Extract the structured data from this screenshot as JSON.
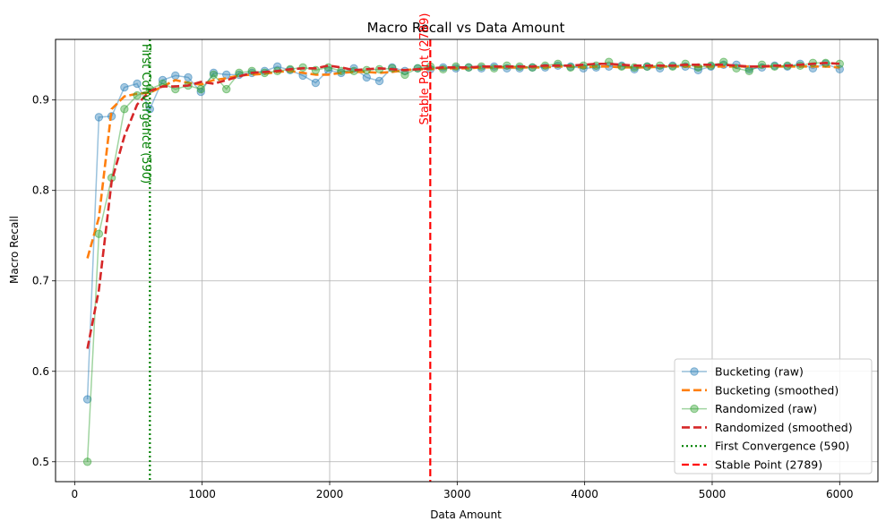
{
  "chart_data": {
    "type": "line",
    "title": "Macro Recall vs Data Amount",
    "xlabel": "Data Amount",
    "ylabel": "Macro Recall",
    "xlim": [
      -150,
      6300
    ],
    "ylim": [
      0.478,
      0.967
    ],
    "xticks": [
      0,
      1000,
      2000,
      3000,
      4000,
      5000,
      6000
    ],
    "yticks": [
      0.5,
      0.6,
      0.7,
      0.8,
      0.9
    ],
    "xtick_labels": [
      "0",
      "1000",
      "2000",
      "3000",
      "4000",
      "5000",
      "6000"
    ],
    "ytick_labels": [
      "0.5",
      "0.6",
      "0.7",
      "0.8",
      "0.9"
    ],
    "grid": true,
    "legend_position": "lower-right",
    "x": [
      100,
      190,
      290,
      390,
      490,
      590,
      690,
      790,
      890,
      990,
      1090,
      1190,
      1290,
      1390,
      1490,
      1590,
      1690,
      1790,
      1890,
      1990,
      2090,
      2190,
      2290,
      2390,
      2490,
      2590,
      2690,
      2790,
      2890,
      2990,
      3090,
      3190,
      3290,
      3390,
      3490,
      3590,
      3690,
      3790,
      3890,
      3990,
      4090,
      4190,
      4290,
      4390,
      4490,
      4590,
      4690,
      4790,
      4890,
      4990,
      5090,
      5190,
      5290,
      5390,
      5490,
      5590,
      5690,
      5790,
      5890,
      6000
    ],
    "series": [
      {
        "name": "Bucketing (raw)",
        "color": "#1f77b4",
        "style": "raw",
        "values": [
          0.569,
          0.881,
          0.882,
          0.914,
          0.918,
          0.89,
          0.922,
          0.927,
          0.925,
          0.909,
          0.93,
          0.928,
          0.928,
          0.93,
          0.932,
          0.937,
          0.933,
          0.927,
          0.919,
          0.933,
          0.93,
          0.935,
          0.925,
          0.921,
          0.936,
          0.932,
          0.935,
          0.934,
          0.936,
          0.935,
          0.936,
          0.935,
          0.937,
          0.935,
          0.935,
          0.936,
          0.936,
          0.938,
          0.937,
          0.935,
          0.936,
          0.937,
          0.938,
          0.934,
          0.937,
          0.935,
          0.938,
          0.937,
          0.933,
          0.937,
          0.939,
          0.939,
          0.934,
          0.936,
          0.938,
          0.937,
          0.94,
          0.935,
          0.94,
          0.934
        ]
      },
      {
        "name": "Bucketing (smoothed)",
        "color": "#ff7f0e",
        "style": "smoothed",
        "values": [
          0.725,
          0.77,
          0.89,
          0.904,
          0.907,
          0.908,
          0.915,
          0.922,
          0.919,
          0.917,
          0.922,
          0.924,
          0.927,
          0.928,
          0.929,
          0.931,
          0.932,
          0.93,
          0.928,
          0.928,
          0.93,
          0.931,
          0.931,
          0.93,
          0.931,
          0.933,
          0.934,
          0.934,
          0.935,
          0.935,
          0.935,
          0.936,
          0.936,
          0.936,
          0.936,
          0.936,
          0.936,
          0.937,
          0.937,
          0.936,
          0.937,
          0.937,
          0.936,
          0.936,
          0.936,
          0.937,
          0.937,
          0.937,
          0.937,
          0.937,
          0.937,
          0.937,
          0.937,
          0.937,
          0.937,
          0.937,
          0.937,
          0.937,
          0.937,
          0.936
        ]
      },
      {
        "name": "Randomized (raw)",
        "color": "#2ca02c",
        "style": "raw",
        "values": [
          0.5,
          0.752,
          0.814,
          0.89,
          0.905,
          0.912,
          0.918,
          0.912,
          0.916,
          0.912,
          0.928,
          0.912,
          0.93,
          0.932,
          0.93,
          0.932,
          0.934,
          0.936,
          0.933,
          0.936,
          0.932,
          0.932,
          0.933,
          0.934,
          0.935,
          0.928,
          0.935,
          0.937,
          0.934,
          0.937,
          0.936,
          0.937,
          0.935,
          0.938,
          0.937,
          0.936,
          0.938,
          0.94,
          0.936,
          0.938,
          0.938,
          0.942,
          0.937,
          0.936,
          0.937,
          0.938,
          0.937,
          0.94,
          0.936,
          0.938,
          0.942,
          0.935,
          0.932,
          0.939,
          0.937,
          0.938,
          0.938,
          0.941,
          0.941,
          0.94
        ]
      },
      {
        "name": "Randomized (smoothed)",
        "color": "#d62728",
        "style": "smoothed",
        "values": [
          0.625,
          0.69,
          0.81,
          0.86,
          0.895,
          0.91,
          0.915,
          0.915,
          0.916,
          0.92,
          0.918,
          0.922,
          0.926,
          0.93,
          0.931,
          0.932,
          0.934,
          0.935,
          0.935,
          0.938,
          0.936,
          0.933,
          0.934,
          0.935,
          0.934,
          0.933,
          0.934,
          0.935,
          0.936,
          0.936,
          0.936,
          0.937,
          0.937,
          0.937,
          0.937,
          0.937,
          0.938,
          0.938,
          0.938,
          0.939,
          0.94,
          0.94,
          0.939,
          0.938,
          0.938,
          0.938,
          0.938,
          0.939,
          0.939,
          0.939,
          0.939,
          0.938,
          0.937,
          0.937,
          0.938,
          0.938,
          0.939,
          0.94,
          0.941,
          0.94
        ]
      }
    ],
    "vlines": [
      {
        "name": "First Convergence (590)",
        "x": 590,
        "color": "#008000",
        "style": "dotted",
        "label": "First Convergence (590)"
      },
      {
        "name": "Stable Point (2789)",
        "x": 2789,
        "color": "#ff0000",
        "style": "dashed",
        "label": "Stable Point (2789)"
      }
    ],
    "legend": [
      "Bucketing (raw)",
      "Bucketing (smoothed)",
      "Randomized (raw)",
      "Randomized (smoothed)",
      "First Convergence (590)",
      "Stable Point (2789)"
    ]
  }
}
